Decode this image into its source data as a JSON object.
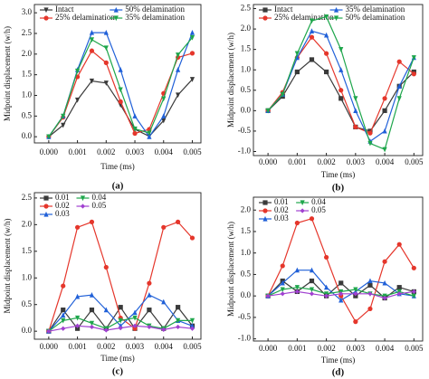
{
  "chart_data": [
    {
      "type": "line",
      "caption": "(a)",
      "xlabel": "Time (ms)",
      "ylabel": "Midpoint displacement (w/h)",
      "x": [
        0,
        0.0005,
        0.001,
        0.0015,
        0.002,
        0.0025,
        0.003,
        0.0035,
        0.004,
        0.0045,
        0.005
      ],
      "xlim": [
        -0.0005,
        0.0053
      ],
      "xticks": [
        {
          "value": 0,
          "label": "0.000"
        },
        {
          "value": 0.001,
          "label": "0.001"
        },
        {
          "value": 0.002,
          "label": "0.002"
        },
        {
          "value": 0.003,
          "label": "0.003"
        },
        {
          "value": 0.004,
          "label": "0.004"
        },
        {
          "value": 0.005,
          "label": "0.005"
        }
      ],
      "ylim": [
        -0.15,
        3.2
      ],
      "yticks": [
        {
          "value": 0,
          "label": "0.0"
        },
        0.5,
        {
          "value": 1,
          "label": "1.0"
        },
        1.5,
        {
          "value": 2,
          "label": "2.0"
        },
        2.5,
        {
          "value": 3,
          "label": "3.0"
        }
      ],
      "series": [
        {
          "name": "Intact",
          "color": "#3a3a3a",
          "marker": "down",
          "values": [
            0,
            0.28,
            0.89,
            1.35,
            1.3,
            0.77,
            0.18,
            0.01,
            0.39,
            1.01,
            1.39
          ]
        },
        {
          "name": "25% delamination",
          "color": "#e5362b",
          "marker": "circle",
          "values": [
            0,
            0.47,
            1.45,
            2.08,
            1.79,
            0.85,
            0.08,
            0.18,
            1.05,
            1.92,
            2.02
          ]
        },
        {
          "name": "50% delamination",
          "color": "#2060d8",
          "marker": "up",
          "values": [
            0,
            0.5,
            1.62,
            2.52,
            2.52,
            1.62,
            0.5,
            0,
            0.5,
            1.62,
            2.52
          ]
        },
        {
          "name": "35% delamination",
          "color": "#1ea64b",
          "marker": "down",
          "values": [
            0,
            0.5,
            1.59,
            2.35,
            2.15,
            1.14,
            0.19,
            0.09,
            0.92,
            1.98,
            2.4
          ]
        }
      ]
    },
    {
      "type": "line",
      "caption": "(b)",
      "xlabel": "Time (ms)",
      "ylabel": "Midpoint displacement (w/h)",
      "x": [
        0,
        0.0005,
        0.001,
        0.0015,
        0.002,
        0.0025,
        0.003,
        0.0035,
        0.004,
        0.0045,
        0.005
      ],
      "xlim": [
        -0.0005,
        0.0053
      ],
      "xticks": [
        {
          "value": 0,
          "label": "0.000"
        },
        {
          "value": 0.001,
          "label": "0.001"
        },
        {
          "value": 0.002,
          "label": "0.002"
        },
        {
          "value": 0.003,
          "label": "0.003"
        },
        {
          "value": 0.004,
          "label": "0.004"
        },
        {
          "value": 0.005,
          "label": "0.005"
        }
      ],
      "ylim": [
        -1.1,
        2.6
      ],
      "yticks": [
        {
          "value": -1,
          "label": "-1.0"
        },
        -0.5,
        {
          "value": 0,
          "label": "0.0"
        },
        0.5,
        {
          "value": 1,
          "label": "1.0"
        },
        1.5,
        {
          "value": 2,
          "label": "2.0"
        },
        2.5
      ],
      "series": [
        {
          "name": "Intact",
          "color": "#3a3a3a",
          "marker": "square",
          "values": [
            0,
            0.35,
            0.95,
            1.25,
            0.95,
            0.3,
            -0.4,
            -0.5,
            0,
            0.6,
            0.95
          ]
        },
        {
          "name": "25% delamination",
          "color": "#e5362b",
          "marker": "circle",
          "values": [
            0,
            0.45,
            1.3,
            1.8,
            1.4,
            0.5,
            -0.4,
            -0.55,
            0.3,
            1.2,
            0.9
          ]
        },
        {
          "name": "35% delamination",
          "color": "#2060d8",
          "marker": "up",
          "values": [
            0,
            0.4,
            1.3,
            1.95,
            1.85,
            1,
            0,
            -0.75,
            -0.5,
            0.6,
            1.3
          ]
        },
        {
          "name": "50% delamination",
          "color": "#1ea64b",
          "marker": "down",
          "values": [
            0,
            0.4,
            1.4,
            2.2,
            2.3,
            1.5,
            0.3,
            -0.8,
            -0.95,
            0.3,
            1.3
          ]
        }
      ]
    },
    {
      "type": "line",
      "caption": "(c)",
      "xlabel": "Time (ms)",
      "ylabel": "Midpoint displacement (w/h)",
      "x": [
        0,
        0.0005,
        0.001,
        0.0015,
        0.002,
        0.0025,
        0.003,
        0.0035,
        0.004,
        0.0045,
        0.005
      ],
      "xlim": [
        -0.0005,
        0.0053
      ],
      "xticks": [
        {
          "value": 0,
          "label": "0.000"
        },
        {
          "value": 0.001,
          "label": "0.001"
        },
        {
          "value": 0.002,
          "label": "0.002"
        },
        {
          "value": 0.003,
          "label": "0.003"
        },
        {
          "value": 0.004,
          "label": "0.004"
        },
        {
          "value": 0.005,
          "label": "0.005"
        }
      ],
      "ylim": [
        -0.15,
        2.6
      ],
      "yticks": [
        {
          "value": 0,
          "label": "0.0"
        },
        0.5,
        {
          "value": 1,
          "label": "1.0"
        },
        1.5,
        {
          "value": 2,
          "label": "2.0"
        },
        2.5
      ],
      "series": [
        {
          "name": "0.01",
          "color": "#3a3a3a",
          "marker": "square",
          "values": [
            0,
            0.4,
            0.05,
            0.4,
            0.05,
            0.45,
            0.05,
            0.4,
            0.05,
            0.45,
            0.1
          ]
        },
        {
          "name": "0.02",
          "color": "#e5362b",
          "marker": "circle",
          "values": [
            0,
            0.85,
            1.95,
            2.05,
            1.2,
            0.25,
            0.05,
            0.9,
            1.95,
            2.05,
            1.75
          ]
        },
        {
          "name": "0.03",
          "color": "#2060d8",
          "marker": "up",
          "values": [
            0,
            0.3,
            0.65,
            0.68,
            0.4,
            0.1,
            0.35,
            0.68,
            0.55,
            0.2,
            0.1
          ]
        },
        {
          "name": "0.04",
          "color": "#1ea64b",
          "marker": "down",
          "values": [
            0,
            0.2,
            0.25,
            0.15,
            0.05,
            0.2,
            0.25,
            0.1,
            0.05,
            0.2,
            0.2
          ]
        },
        {
          "name": "0.05",
          "color": "#a040d0",
          "marker": "diamond",
          "values": [
            0,
            0.05,
            0.1,
            0.08,
            0.02,
            0.06,
            0.1,
            0.08,
            0.03,
            0.08,
            0.05
          ]
        }
      ]
    },
    {
      "type": "line",
      "caption": "(d)",
      "xlabel": "Time (ms)",
      "ylabel": "Midpoint displacement (w/h)",
      "x": [
        0,
        0.0005,
        0.001,
        0.0015,
        0.002,
        0.0025,
        0.003,
        0.0035,
        0.004,
        0.0045,
        0.005
      ],
      "xlim": [
        -0.0005,
        0.0053
      ],
      "xticks": [
        {
          "value": 0,
          "label": "0.000"
        },
        {
          "value": 0.001,
          "label": "0.001"
        },
        {
          "value": 0.002,
          "label": "0.002"
        },
        {
          "value": 0.003,
          "label": "0.003"
        },
        {
          "value": 0.004,
          "label": "0.004"
        },
        {
          "value": 0.005,
          "label": "0.005"
        }
      ],
      "ylim": [
        -1.05,
        2.3
      ],
      "yticks": [
        {
          "value": -1,
          "label": "-1.0"
        },
        -0.5,
        {
          "value": 0,
          "label": "0.0"
        },
        0.5,
        {
          "value": 1,
          "label": "1.0"
        },
        1.5,
        {
          "value": 2,
          "label": "2.0"
        }
      ],
      "series": [
        {
          "name": "0.01",
          "color": "#3a3a3a",
          "marker": "square",
          "values": [
            0,
            0.35,
            0.1,
            0.35,
            0,
            0.3,
            0,
            0.25,
            -0.05,
            0.2,
            0.1
          ]
        },
        {
          "name": "0.02",
          "color": "#e5362b",
          "marker": "circle",
          "values": [
            0,
            0.7,
            1.7,
            1.8,
            0.9,
            0,
            -0.6,
            -0.3,
            0.8,
            1.2,
            0.65
          ]
        },
        {
          "name": "0.03",
          "color": "#2060d8",
          "marker": "up",
          "values": [
            0,
            0.3,
            0.6,
            0.6,
            0.2,
            -0.1,
            0.1,
            0.35,
            0.3,
            0.05,
            0
          ]
        },
        {
          "name": "0.04",
          "color": "#1ea64b",
          "marker": "down",
          "values": [
            0,
            0.15,
            0.2,
            0.15,
            0.05,
            0.1,
            0.15,
            0.05,
            0,
            0.1,
            0
          ]
        },
        {
          "name": "0.05",
          "color": "#a040d0",
          "marker": "diamond",
          "values": [
            0,
            0.05,
            0.1,
            0.05,
            0,
            0.05,
            0.05,
            0.05,
            -0.05,
            0.05,
            0.1
          ]
        }
      ]
    }
  ]
}
